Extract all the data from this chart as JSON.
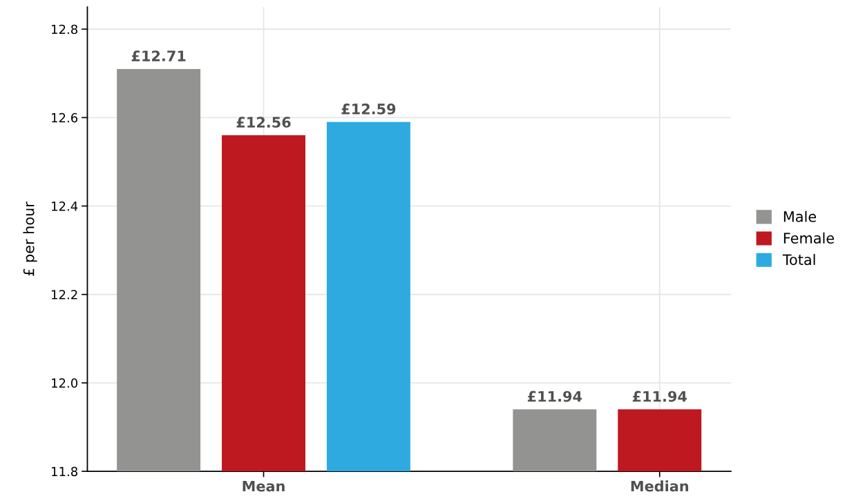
{
  "chart_data": {
    "type": "bar",
    "ylabel": "£ per hour",
    "categories": [
      "Mean",
      "Median"
    ],
    "series": [
      {
        "name": "Male",
        "color": "#939391",
        "values": [
          12.71,
          11.94
        ],
        "value_labels": [
          "£12.71",
          "£11.94"
        ]
      },
      {
        "name": "Female",
        "color": "#be1820",
        "values": [
          12.56,
          11.94
        ],
        "value_labels": [
          "£12.56",
          "£11.94"
        ]
      },
      {
        "name": "Total",
        "color": "#2eaae1",
        "values": [
          12.59,
          null
        ],
        "value_labels": [
          "£12.59",
          null
        ]
      }
    ],
    "ylim": [
      11.8,
      12.85
    ],
    "yticks": [
      11.8,
      {
        "value": 12.0,
        "label": "12.0"
      },
      12.2,
      12.4,
      12.6,
      12.8
    ],
    "grid": true,
    "legend": "right"
  }
}
